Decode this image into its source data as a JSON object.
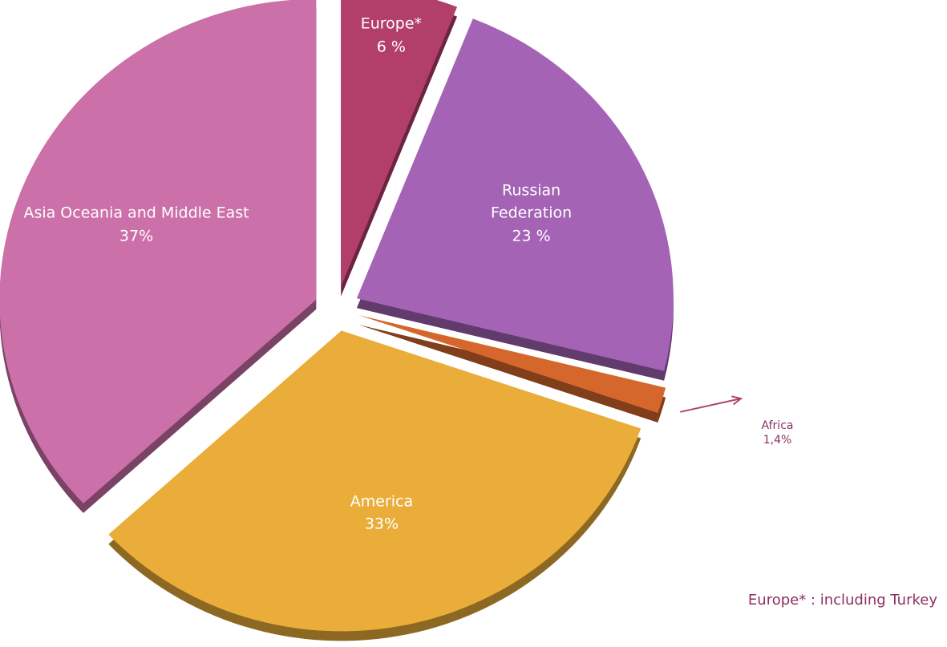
{
  "chart_data": {
    "type": "pie",
    "categories": [
      "Europe*",
      "Russian Federation",
      "Africa",
      "America",
      "Asia Oceania and Middle East"
    ],
    "values": [
      6,
      23,
      1.4,
      33,
      37
    ],
    "value_labels": [
      "6 %",
      "23 %",
      "1,4%",
      "33%",
      "37%"
    ],
    "colors": [
      "#b23e6a",
      "#a463b5",
      "#d6672c",
      "#eaad3a",
      "#cb70a8"
    ],
    "note": "Europe* : including Turkey"
  }
}
